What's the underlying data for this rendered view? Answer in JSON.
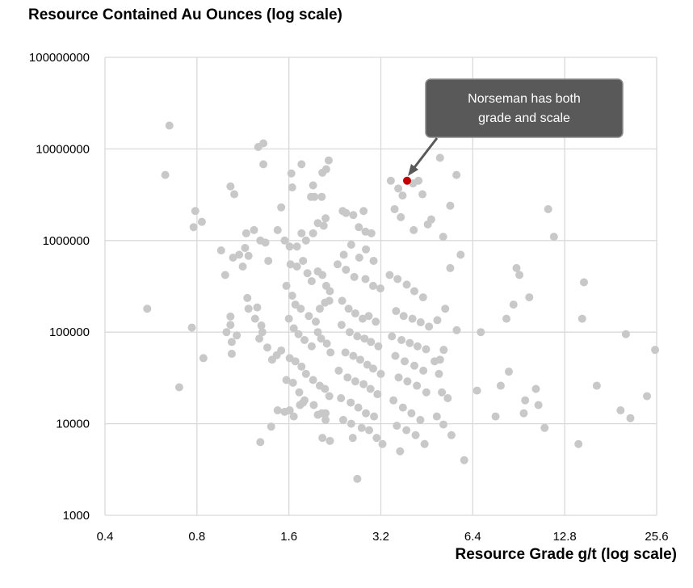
{
  "chart_data": {
    "type": "scatter",
    "ylabel": "Resource Contained Au Ounces (log scale)",
    "xlabel": "Resource Grade g/t (log scale)",
    "x_scale": "log2",
    "y_scale": "log10",
    "xlim": [
      0.4,
      25.6
    ],
    "ylim": [
      1000,
      100000000
    ],
    "x_ticks": [
      "0.4",
      "0.8",
      "1.6",
      "3.2",
      "6.4",
      "12.8",
      "25.6"
    ],
    "y_ticks": [
      "1000",
      "10000",
      "100000",
      "1000000",
      "10000000",
      "100000000"
    ],
    "grid": true,
    "colors": {
      "points": "#c8c8c8",
      "highlight": "#c00000",
      "callout": "#595959",
      "grid": "#d9d9d9"
    },
    "highlight": {
      "x": 3.9,
      "y": 4500000
    },
    "annotation": {
      "lines": [
        "Norseman has both",
        "grade and scale"
      ]
    },
    "points": [
      [
        0.65,
        18000000
      ],
      [
        0.63,
        5200000
      ],
      [
        0.79,
        2100000
      ],
      [
        0.78,
        1400000
      ],
      [
        0.83,
        1600000
      ],
      [
        0.77,
        112000
      ],
      [
        0.55,
        180000
      ],
      [
        0.84,
        52000
      ],
      [
        0.7,
        25000
      ],
      [
        1.03,
        3900000
      ],
      [
        1.06,
        3200000
      ],
      [
        1.27,
        10500000
      ],
      [
        1.32,
        11500000
      ],
      [
        1.32,
        6800000
      ],
      [
        1.16,
        1200000
      ],
      [
        1.23,
        1300000
      ],
      [
        1.29,
        1000000
      ],
      [
        1.34,
        950000
      ],
      [
        1.37,
        600000
      ],
      [
        0.96,
        780000
      ],
      [
        0.99,
        420000
      ],
      [
        1.05,
        650000
      ],
      [
        1.1,
        700000
      ],
      [
        1.13,
        520000
      ],
      [
        1.15,
        830000
      ],
      [
        1.18,
        680000
      ],
      [
        1.0,
        100000
      ],
      [
        1.03,
        148000
      ],
      [
        1.03,
        120000
      ],
      [
        1.04,
        78000
      ],
      [
        1.04,
        58000
      ],
      [
        1.08,
        92000
      ],
      [
        1.17,
        236000
      ],
      [
        1.18,
        180000
      ],
      [
        1.24,
        140000
      ],
      [
        1.3,
        118000
      ],
      [
        1.31,
        100000
      ],
      [
        1.28,
        85000
      ],
      [
        1.36,
        68000
      ],
      [
        1.41,
        50000
      ],
      [
        1.46,
        56000
      ],
      [
        1.51,
        63000
      ],
      [
        1.26,
        186000
      ],
      [
        1.29,
        6300
      ],
      [
        1.4,
        9300
      ],
      [
        1.47,
        14000
      ],
      [
        1.51,
        2300000
      ],
      [
        1.63,
        5400000
      ],
      [
        1.64,
        3800000
      ],
      [
        1.76,
        6800000
      ],
      [
        1.89,
        3000000
      ],
      [
        1.92,
        4000000
      ],
      [
        1.94,
        3000000
      ],
      [
        2.05,
        3000000
      ],
      [
        2.06,
        5500000
      ],
      [
        2.12,
        6000000
      ],
      [
        2.16,
        7500000
      ],
      [
        1.47,
        1300000
      ],
      [
        1.55,
        1000000
      ],
      [
        1.61,
        860000
      ],
      [
        1.7,
        860000
      ],
      [
        1.76,
        1200000
      ],
      [
        1.82,
        1000000
      ],
      [
        1.92,
        1200000
      ],
      [
        1.99,
        1550000
      ],
      [
        2.08,
        1450000
      ],
      [
        2.11,
        1750000
      ],
      [
        1.62,
        550000
      ],
      [
        1.7,
        520000
      ],
      [
        1.78,
        600000
      ],
      [
        1.84,
        440000
      ],
      [
        1.9,
        360000
      ],
      [
        1.99,
        460000
      ],
      [
        2.06,
        420000
      ],
      [
        2.12,
        320000
      ],
      [
        2.18,
        280000
      ],
      [
        1.57,
        320000
      ],
      [
        1.64,
        250000
      ],
      [
        1.68,
        200000
      ],
      [
        1.75,
        180000
      ],
      [
        1.86,
        150000
      ],
      [
        1.96,
        130000
      ],
      [
        2.02,
        180000
      ],
      [
        2.1,
        210000
      ],
      [
        2.17,
        220000
      ],
      [
        1.6,
        140000
      ],
      [
        1.66,
        110000
      ],
      [
        1.72,
        95000
      ],
      [
        1.8,
        82000
      ],
      [
        1.9,
        70000
      ],
      [
        1.99,
        100000
      ],
      [
        2.04,
        85000
      ],
      [
        2.13,
        75000
      ],
      [
        2.19,
        60000
      ],
      [
        1.61,
        52000
      ],
      [
        1.68,
        48000
      ],
      [
        1.76,
        42000
      ],
      [
        1.82,
        35000
      ],
      [
        1.92,
        30000
      ],
      [
        2.02,
        26000
      ],
      [
        2.1,
        24000
      ],
      [
        2.17,
        20000
      ],
      [
        1.57,
        30000
      ],
      [
        1.65,
        28000
      ],
      [
        1.73,
        22000
      ],
      [
        1.8,
        18000
      ],
      [
        1.93,
        16000
      ],
      [
        2.05,
        13000
      ],
      [
        2.11,
        11000
      ],
      [
        1.55,
        13500
      ],
      [
        1.61,
        14000
      ],
      [
        1.66,
        12000
      ],
      [
        1.74,
        16000
      ],
      [
        1.78,
        17000
      ],
      [
        1.99,
        12500
      ],
      [
        2.06,
        7000
      ],
      [
        2.18,
        6500
      ],
      [
        2.11,
        13000
      ],
      [
        2.4,
        2100000
      ],
      [
        2.46,
        2000000
      ],
      [
        2.6,
        1900000
      ],
      [
        2.81,
        2100000
      ],
      [
        2.71,
        1400000
      ],
      [
        2.85,
        1250000
      ],
      [
        2.98,
        1200000
      ],
      [
        2.42,
        700000
      ],
      [
        2.56,
        900000
      ],
      [
        2.72,
        650000
      ],
      [
        2.86,
        800000
      ],
      [
        3.03,
        600000
      ],
      [
        2.31,
        550000
      ],
      [
        2.46,
        480000
      ],
      [
        2.62,
        400000
      ],
      [
        2.85,
        380000
      ],
      [
        3.02,
        320000
      ],
      [
        3.19,
        300000
      ],
      [
        2.39,
        220000
      ],
      [
        2.51,
        180000
      ],
      [
        2.64,
        160000
      ],
      [
        2.79,
        140000
      ],
      [
        2.92,
        150000
      ],
      [
        3.08,
        130000
      ],
      [
        2.38,
        120000
      ],
      [
        2.53,
        100000
      ],
      [
        2.68,
        90000
      ],
      [
        2.83,
        85000
      ],
      [
        2.97,
        78000
      ],
      [
        3.14,
        70000
      ],
      [
        2.45,
        60000
      ],
      [
        2.6,
        55000
      ],
      [
        2.74,
        50000
      ],
      [
        2.89,
        44000
      ],
      [
        3.02,
        40000
      ],
      [
        3.2,
        35000
      ],
      [
        2.33,
        38000
      ],
      [
        2.49,
        32000
      ],
      [
        2.64,
        29000
      ],
      [
        2.81,
        27000
      ],
      [
        2.96,
        24000
      ],
      [
        3.12,
        21000
      ],
      [
        2.37,
        19000
      ],
      [
        2.55,
        17000
      ],
      [
        2.7,
        15000
      ],
      [
        2.86,
        13000
      ],
      [
        3.04,
        12000
      ],
      [
        2.41,
        11000
      ],
      [
        2.56,
        10000
      ],
      [
        2.77,
        9000
      ],
      [
        2.93,
        8500
      ],
      [
        3.1,
        7000
      ],
      [
        3.24,
        6000
      ],
      [
        2.68,
        2500
      ],
      [
        2.59,
        7000
      ],
      [
        3.45,
        4500000
      ],
      [
        3.65,
        3700000
      ],
      [
        3.77,
        3100000
      ],
      [
        3.55,
        2200000
      ],
      [
        4.08,
        4200000
      ],
      [
        4.25,
        4500000
      ],
      [
        4.38,
        3200000
      ],
      [
        3.72,
        1800000
      ],
      [
        4.1,
        1300000
      ],
      [
        4.56,
        1500000
      ],
      [
        3.42,
        420000
      ],
      [
        3.63,
        380000
      ],
      [
        3.89,
        330000
      ],
      [
        4.12,
        280000
      ],
      [
        4.4,
        240000
      ],
      [
        3.59,
        170000
      ],
      [
        3.8,
        150000
      ],
      [
        4.06,
        140000
      ],
      [
        4.32,
        128000
      ],
      [
        4.6,
        115000
      ],
      [
        3.48,
        90000
      ],
      [
        3.74,
        82000
      ],
      [
        3.98,
        76000
      ],
      [
        4.22,
        70000
      ],
      [
        4.5,
        65000
      ],
      [
        3.57,
        55000
      ],
      [
        3.83,
        48000
      ],
      [
        4.12,
        43000
      ],
      [
        4.41,
        38000
      ],
      [
        3.66,
        32000
      ],
      [
        3.91,
        29000
      ],
      [
        4.2,
        26000
      ],
      [
        4.51,
        22000
      ],
      [
        3.52,
        18000
      ],
      [
        3.78,
        15000
      ],
      [
        4.03,
        13000
      ],
      [
        4.31,
        11000
      ],
      [
        3.61,
        9500
      ],
      [
        3.88,
        8500
      ],
      [
        4.16,
        7500
      ],
      [
        3.7,
        5000
      ],
      [
        4.45,
        6000
      ],
      [
        5.0,
        8000000
      ],
      [
        5.66,
        5200000
      ],
      [
        5.4,
        2400000
      ],
      [
        4.68,
        1700000
      ],
      [
        5.12,
        1100000
      ],
      [
        5.4,
        500000
      ],
      [
        5.84,
        700000
      ],
      [
        5.2,
        180000
      ],
      [
        4.9,
        135000
      ],
      [
        5.67,
        105000
      ],
      [
        5.14,
        64000
      ],
      [
        5.0,
        50000
      ],
      [
        4.8,
        48000
      ],
      [
        4.96,
        35000
      ],
      [
        5.07,
        22000
      ],
      [
        5.3,
        19000
      ],
      [
        4.88,
        12000
      ],
      [
        5.13,
        9800
      ],
      [
        5.45,
        7500
      ],
      [
        6.0,
        4000
      ],
      [
        6.61,
        23000
      ],
      [
        6.8,
        100000
      ],
      [
        7.6,
        12000
      ],
      [
        7.9,
        26000
      ],
      [
        8.25,
        140000
      ],
      [
        8.4,
        37000
      ],
      [
        8.7,
        200000
      ],
      [
        8.9,
        500000
      ],
      [
        9.1,
        420000
      ],
      [
        9.4,
        13000
      ],
      [
        9.5,
        18000
      ],
      [
        9.8,
        240000
      ],
      [
        10.5,
        16000
      ],
      [
        10.3,
        24000
      ],
      [
        11.0,
        9000
      ],
      [
        11.3,
        2200000
      ],
      [
        11.8,
        1100000
      ],
      [
        14.2,
        6000
      ],
      [
        14.6,
        140000
      ],
      [
        14.8,
        350000
      ],
      [
        16.3,
        26000
      ],
      [
        19.5,
        14000
      ],
      [
        20.3,
        95000
      ],
      [
        21.0,
        11500
      ],
      [
        23.8,
        20000
      ],
      [
        25.3,
        64000
      ]
    ]
  }
}
